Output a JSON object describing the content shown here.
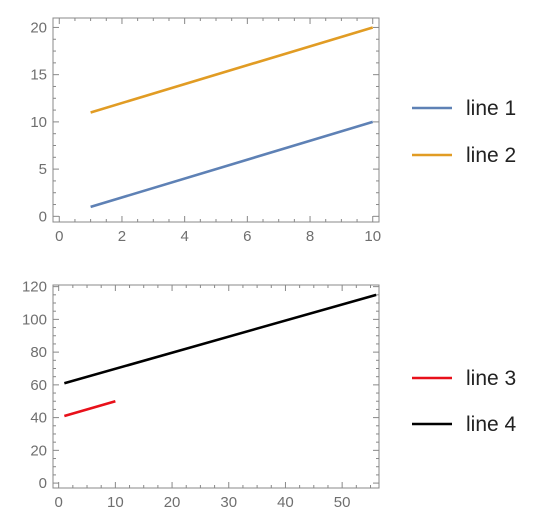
{
  "chart_data": [
    {
      "type": "line",
      "title": "",
      "xlabel": "",
      "ylabel": "",
      "xlim": [
        -0.2,
        10.2
      ],
      "ylim": [
        -0.6,
        21
      ],
      "xticks": [
        0,
        2,
        4,
        6,
        8,
        10
      ],
      "yticks": [
        0,
        5,
        10,
        15,
        20
      ],
      "legend_placement": "right",
      "series": [
        {
          "name": "line 1",
          "color": "#5e81b5",
          "x": [
            1,
            10
          ],
          "y": [
            1,
            10
          ]
        },
        {
          "name": "line 2",
          "color": "#e19c24",
          "x": [
            1,
            10
          ],
          "y": [
            11,
            20
          ]
        }
      ]
    },
    {
      "type": "line",
      "title": "",
      "xlabel": "",
      "ylabel": "",
      "xlim": [
        -1,
        56.5
      ],
      "ylim": [
        -3,
        121
      ],
      "xticks": [
        0,
        10,
        20,
        30,
        40,
        50
      ],
      "yticks": [
        0,
        20,
        40,
        60,
        80,
        100,
        120
      ],
      "legend_placement": "right",
      "series": [
        {
          "name": "line 3",
          "color": "#e8101a",
          "x": [
            1,
            10
          ],
          "y": [
            41,
            50
          ]
        },
        {
          "name": "line 4",
          "color": "#000000",
          "x": [
            1,
            56
          ],
          "y": [
            61,
            115
          ]
        }
      ]
    }
  ]
}
